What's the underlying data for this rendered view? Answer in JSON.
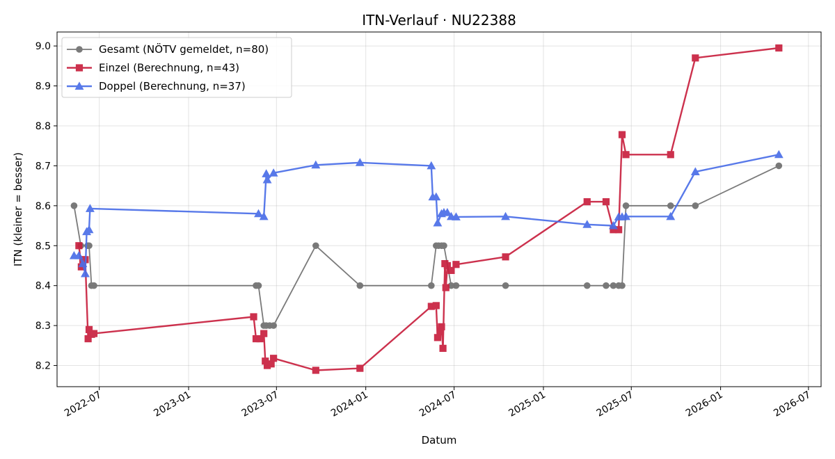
{
  "chart_data": {
    "type": "line",
    "title": "ITN-Verlauf · NU22388",
    "xlabel": "Datum",
    "ylabel": "ITN  (kleiner = besser)",
    "x_type": "date",
    "xlim": [
      "2022-04-05",
      "2026-07-27"
    ],
    "ylim": [
      8.147,
      9.035
    ],
    "x_ticks": [
      "2022-07-01",
      "2023-01-01",
      "2023-07-01",
      "2024-01-01",
      "2024-07-01",
      "2025-01-01",
      "2025-07-01",
      "2026-01-01",
      "2026-07-01"
    ],
    "x_tick_labels": [
      "2022-07",
      "2023-01",
      "2023-07",
      "2024-01",
      "2024-07",
      "2025-01",
      "2025-07",
      "2026-01",
      "2026-07"
    ],
    "y_ticks": [
      8.2,
      8.3,
      8.4,
      8.5,
      8.6,
      8.7,
      8.8,
      8.9,
      9.0
    ],
    "y_tick_labels": [
      "8.2",
      "8.3",
      "8.4",
      "8.5",
      "8.6",
      "8.7",
      "8.8",
      "8.9",
      "9.0"
    ],
    "grid": true,
    "legend_position": "top-left",
    "series": [
      {
        "name": "Gesamt (NÖTV gemeldet, n=80)",
        "color": "#555555",
        "marker": "circle",
        "points": [
          [
            "2022-05-10",
            8.6
          ],
          [
            "2022-05-24",
            8.5
          ],
          [
            "2022-06-07",
            8.5
          ],
          [
            "2022-06-10",
            8.5
          ],
          [
            "2022-06-15",
            8.4
          ],
          [
            "2022-06-20",
            8.4
          ],
          [
            "2023-05-20",
            8.4
          ],
          [
            "2023-05-25",
            8.4
          ],
          [
            "2023-06-05",
            8.3
          ],
          [
            "2023-06-10",
            8.3
          ],
          [
            "2023-06-17",
            8.3
          ],
          [
            "2023-06-25",
            8.3
          ],
          [
            "2023-09-20",
            8.5
          ],
          [
            "2023-12-20",
            8.4
          ],
          [
            "2024-05-15",
            8.4
          ],
          [
            "2024-05-25",
            8.5
          ],
          [
            "2024-05-30",
            8.5
          ],
          [
            "2024-06-05",
            8.5
          ],
          [
            "2024-06-10",
            8.5
          ],
          [
            "2024-06-25",
            8.4
          ],
          [
            "2024-07-05",
            8.4
          ],
          [
            "2024-10-15",
            8.4
          ],
          [
            "2025-04-01",
            8.4
          ],
          [
            "2025-05-10",
            8.4
          ],
          [
            "2025-05-25",
            8.4
          ],
          [
            "2025-06-05",
            8.4
          ],
          [
            "2025-06-12",
            8.4
          ],
          [
            "2025-06-20",
            8.6
          ],
          [
            "2025-09-20",
            8.6
          ],
          [
            "2025-11-10",
            8.6
          ],
          [
            "2026-05-01",
            8.7
          ]
        ]
      },
      {
        "name": "Einzel (Berechnung, n=43)",
        "color": "#c8203e",
        "marker": "square",
        "points": [
          [
            "2022-05-20",
            8.5
          ],
          [
            "2022-05-25",
            8.447
          ],
          [
            "2022-05-28",
            8.465
          ],
          [
            "2022-06-02",
            8.465
          ],
          [
            "2022-06-08",
            8.267
          ],
          [
            "2022-06-10",
            8.29
          ],
          [
            "2022-06-15",
            8.278
          ],
          [
            "2022-06-20",
            8.28
          ],
          [
            "2023-05-15",
            8.322
          ],
          [
            "2023-05-20",
            8.267
          ],
          [
            "2023-05-28",
            8.267
          ],
          [
            "2023-06-05",
            8.28
          ],
          [
            "2023-06-08",
            8.211
          ],
          [
            "2023-06-12",
            8.2
          ],
          [
            "2023-06-20",
            8.204
          ],
          [
            "2023-06-25",
            8.218
          ],
          [
            "2023-09-20",
            8.188
          ],
          [
            "2023-12-20",
            8.193
          ],
          [
            "2024-05-15",
            8.348
          ],
          [
            "2024-05-25",
            8.35
          ],
          [
            "2024-05-28",
            8.27
          ],
          [
            "2024-06-02",
            8.285
          ],
          [
            "2024-06-05",
            8.297
          ],
          [
            "2024-06-08",
            8.243
          ],
          [
            "2024-06-12",
            8.455
          ],
          [
            "2024-06-14",
            8.395
          ],
          [
            "2024-06-17",
            8.45
          ],
          [
            "2024-06-25",
            8.438
          ],
          [
            "2024-07-05",
            8.453
          ],
          [
            "2024-10-15",
            8.472
          ],
          [
            "2025-04-01",
            8.61
          ],
          [
            "2025-05-10",
            8.61
          ],
          [
            "2025-05-25",
            8.54
          ],
          [
            "2025-06-05",
            8.54
          ],
          [
            "2025-06-12",
            8.778
          ],
          [
            "2025-06-20",
            8.728
          ],
          [
            "2025-09-20",
            8.728
          ],
          [
            "2025-11-10",
            8.97
          ],
          [
            "2026-05-01",
            8.995
          ]
        ]
      },
      {
        "name": "Doppel (Berechnung, n=37)",
        "color": "#4a6ee8",
        "marker": "triangle",
        "points": [
          [
            "2022-05-10",
            8.475
          ],
          [
            "2022-05-20",
            8.475
          ],
          [
            "2022-05-28",
            8.455
          ],
          [
            "2022-06-02",
            8.43
          ],
          [
            "2022-06-05",
            8.535
          ],
          [
            "2022-06-10",
            8.54
          ],
          [
            "2022-06-12",
            8.593
          ],
          [
            "2023-05-25",
            8.58
          ],
          [
            "2023-06-05",
            8.573
          ],
          [
            "2023-06-10",
            8.68
          ],
          [
            "2023-06-12",
            8.665
          ],
          [
            "2023-06-25",
            8.682
          ],
          [
            "2023-09-20",
            8.702
          ],
          [
            "2023-12-20",
            8.708
          ],
          [
            "2024-05-15",
            8.7
          ],
          [
            "2024-05-18",
            8.622
          ],
          [
            "2024-05-25",
            8.622
          ],
          [
            "2024-05-28",
            8.557
          ],
          [
            "2024-06-05",
            8.58
          ],
          [
            "2024-06-10",
            8.583
          ],
          [
            "2024-06-17",
            8.583
          ],
          [
            "2024-06-25",
            8.573
          ],
          [
            "2024-07-05",
            8.572
          ],
          [
            "2024-10-15",
            8.573
          ],
          [
            "2025-04-01",
            8.553
          ],
          [
            "2025-05-25",
            8.55
          ],
          [
            "2025-06-05",
            8.572
          ],
          [
            "2025-06-12",
            8.572
          ],
          [
            "2025-06-20",
            8.573
          ],
          [
            "2025-09-20",
            8.573
          ],
          [
            "2025-11-10",
            8.685
          ],
          [
            "2026-05-01",
            8.728
          ]
        ]
      }
    ]
  }
}
